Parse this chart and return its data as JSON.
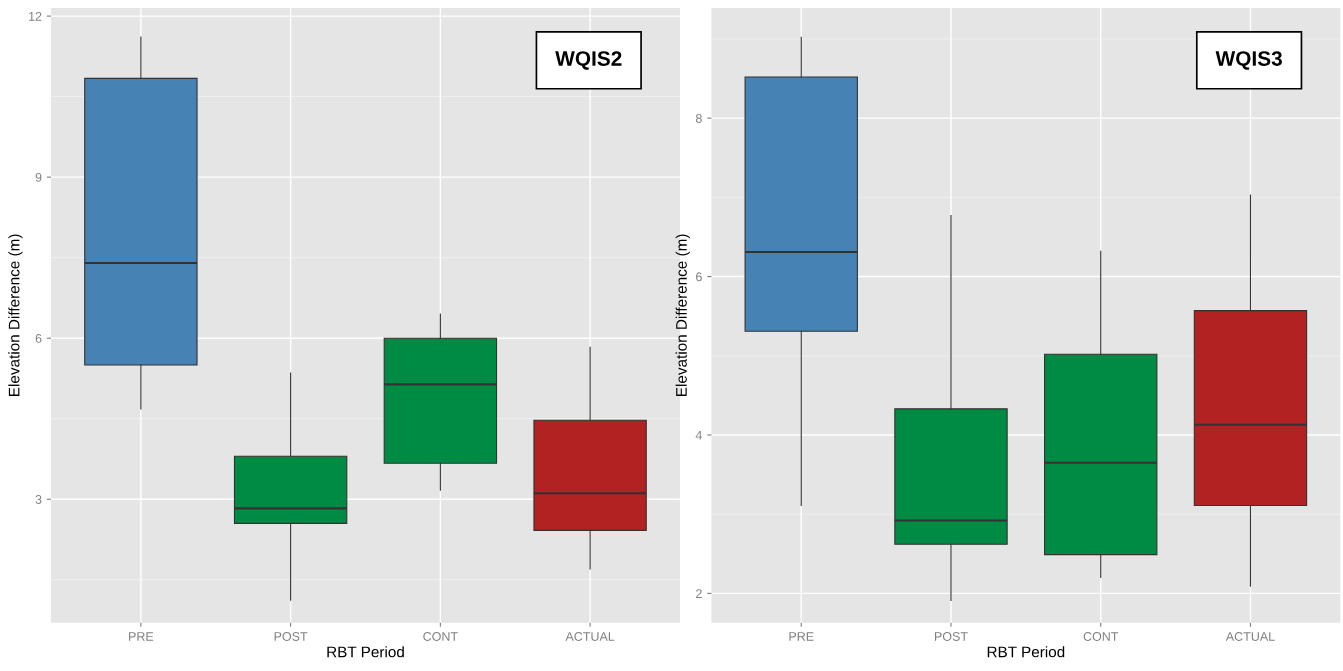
{
  "chart_data": [
    {
      "type": "box",
      "xlabel": "RBT Period",
      "ylabel": "Elevation Difference (m)",
      "annotations": [
        "WQIS2"
      ],
      "categories": [
        "PRE",
        "POST",
        "CONT",
        "ACTUAL"
      ],
      "colors": [
        "#4682b4",
        "#008b45",
        "#008b45",
        "#b22222"
      ],
      "ylim": [
        0.7,
        12.15
      ],
      "yticks": [
        3,
        6,
        9,
        12
      ],
      "grid": true,
      "boxes": [
        {
          "low": 4.68,
          "q1": 5.5,
          "median": 7.4,
          "q3": 10.84,
          "high": 11.61
        },
        {
          "low": 1.12,
          "q1": 2.55,
          "median": 2.83,
          "q3": 3.8,
          "high": 5.35
        },
        {
          "low": 3.17,
          "q1": 3.67,
          "median": 5.14,
          "q3": 6.0,
          "high": 6.45
        },
        {
          "low": 1.7,
          "q1": 2.42,
          "median": 3.11,
          "q3": 4.47,
          "high": 5.83
        }
      ]
    },
    {
      "type": "box",
      "xlabel": "RBT Period",
      "ylabel": "Elevation Difference (m)",
      "annotations": [
        "WQIS3"
      ],
      "categories": [
        "PRE",
        "POST",
        "CONT",
        "ACTUAL"
      ],
      "colors": [
        "#4682b4",
        "#008b45",
        "#008b45",
        "#b22222"
      ],
      "ylim": [
        1.63,
        9.39
      ],
      "yticks": [
        2,
        4,
        6,
        8
      ],
      "grid": true,
      "boxes": [
        {
          "low": 3.11,
          "q1": 5.31,
          "median": 6.31,
          "q3": 8.52,
          "high": 9.02
        },
        {
          "low": 1.91,
          "q1": 2.62,
          "median": 2.92,
          "q3": 4.33,
          "high": 6.77
        },
        {
          "low": 2.2,
          "q1": 2.49,
          "median": 3.65,
          "q3": 5.02,
          "high": 6.32
        },
        {
          "low": 2.09,
          "q1": 3.11,
          "median": 4.13,
          "q3": 5.57,
          "high": 7.03
        }
      ]
    }
  ]
}
